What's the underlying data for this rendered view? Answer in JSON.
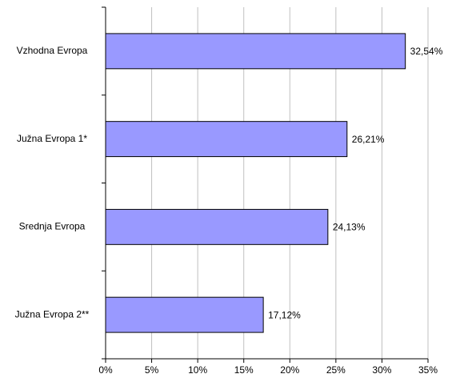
{
  "chart_data": {
    "type": "barh",
    "categories": [
      "Vzhodna Evropa",
      "Južna Evropa 1*",
      "Srednja Evropa",
      "Južna Evropa 2**"
    ],
    "values": [
      32.54,
      26.21,
      24.13,
      17.12
    ],
    "value_labels": [
      "32,54%",
      "26,21%",
      "24,13%",
      "17,12%"
    ],
    "color": "#9999ff",
    "xlim": [
      0,
      35
    ],
    "xticks": [
      {
        "value": 0,
        "label": "0%"
      },
      {
        "value": 5,
        "label": "5%"
      },
      {
        "value": 10,
        "label": "10%"
      },
      {
        "value": 15,
        "label": "15%"
      },
      {
        "value": 20,
        "label": "20%"
      },
      {
        "value": 25,
        "label": "25%"
      },
      {
        "value": 30,
        "label": "30%"
      },
      {
        "value": 35,
        "label": "35%"
      }
    ],
    "grid": true
  }
}
